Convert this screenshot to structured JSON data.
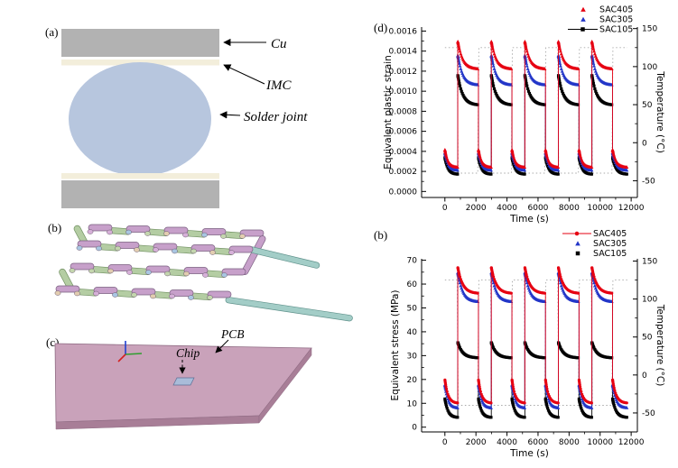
{
  "figure": {
    "background": "#ffffff"
  },
  "panels": {
    "a": {
      "label": "(a)",
      "annotations": {
        "cu": "Cu",
        "imc": "IMC",
        "solder_joint": "Solder joint"
      },
      "colors": {
        "cu_bar": "#b2b2b2",
        "imc_layer": "#f3eedb",
        "solder_ball": "#b7c6de"
      }
    },
    "b": {
      "label": "(b)",
      "colors": {
        "top_trace": "#c7a0ca",
        "bottom_trace": "#b4cda3",
        "lead_trace": "#a3cdc7",
        "ball_1": "#d6b0d8",
        "ball_2": "#a9c6e2",
        "ball_3": "#c4d6ae",
        "ball_4": "#e2cdb0"
      }
    },
    "c": {
      "label": "(c)",
      "annotations": {
        "pcb": "PCB",
        "chip": "Chip"
      },
      "colors": {
        "board_top": "#c9a2ba",
        "board_side": "#a87e97",
        "chip": "#a9bcd9",
        "axis_x": "#d42020",
        "axis_y": "#2f9e2f",
        "axis_z": "#2040d0"
      }
    }
  },
  "chart_data": [
    {
      "id": "strain",
      "panel_label": "(d)",
      "type": "scatter",
      "xlabel": "Time (s)",
      "ylabel": "Equivalent plastic strain",
      "y2label": "Temperature (°C)",
      "xticks": [
        0,
        2000,
        4000,
        6000,
        8000,
        10000,
        12000
      ],
      "xminor": 1000,
      "yticks": [
        0.0,
        0.0002,
        0.0004,
        0.0006,
        0.0008,
        0.001,
        0.0012,
        0.0014,
        0.0016
      ],
      "ytick_labels": [
        "0.0000",
        "0.0002",
        "0.0004",
        "0.0006",
        "0.0008",
        "0.0010",
        "0.0012",
        "0.0014",
        "0.0016"
      ],
      "y2ticks": [
        -50,
        0,
        50,
        100,
        150
      ],
      "xlim": [
        -1500,
        12400
      ],
      "ylim": [
        -6e-05,
        0.00164
      ],
      "y2lim": [
        -72,
        152
      ],
      "legend": [
        {
          "name": "SAC405",
          "color": "#e60012",
          "marker": "triangle",
          "line": false
        },
        {
          "name": "SAC305",
          "color": "#2336c8",
          "marker": "triangle",
          "line": false
        },
        {
          "name": "SAC105",
          "color": "#000000",
          "marker": "square",
          "line": true
        }
      ],
      "cycles": {
        "n": 5,
        "period": 2160,
        "hot_phase_len": 830,
        "t_end": 11750
      },
      "series": [
        {
          "name": "SAC405",
          "color": "#e60012",
          "marker": "triangle",
          "hot_peak": 0.00042,
          "hot_end": 0.00024,
          "cold_peak": 0.0015,
          "cold_end": 0.00122
        },
        {
          "name": "SAC305",
          "color": "#2336c8",
          "marker": "triangle",
          "hot_peak": 0.00039,
          "hot_end": 0.00021,
          "cold_peak": 0.00136,
          "cold_end": 0.00106
        },
        {
          "name": "SAC105",
          "color": "#000000",
          "marker": "square",
          "hot_peak": 0.00034,
          "hot_end": 0.00017,
          "cold_peak": 0.00116,
          "cold_end": 0.00086
        }
      ],
      "temperature_profile": {
        "hot": 125,
        "cold": -40,
        "color": "#a8a8a8"
      }
    },
    {
      "id": "stress",
      "panel_label": "(b)",
      "type": "scatter",
      "xlabel": "Time (s)",
      "ylabel": "Equivalent stress (MPa)",
      "y2label": "Temperature (°C)",
      "xticks": [
        0,
        2000,
        4000,
        6000,
        8000,
        10000,
        12000
      ],
      "xminor": 1000,
      "yticks": [
        0,
        10,
        20,
        30,
        40,
        50,
        60,
        70
      ],
      "ytick_labels": [
        "0",
        "10",
        "20",
        "30",
        "40",
        "50",
        "60",
        "70"
      ],
      "y2ticks": [
        -50,
        0,
        50,
        100,
        150
      ],
      "xlim": [
        -1500,
        12400
      ],
      "ylim": [
        -2,
        70.6
      ],
      "y2lim": [
        -75,
        153
      ],
      "legend": [
        {
          "name": "SAC405",
          "color": "#e60012",
          "marker": "circle",
          "line": true
        },
        {
          "name": "SAC305",
          "color": "#2336c8",
          "marker": "triangle",
          "line": false
        },
        {
          "name": "SAC105",
          "color": "#000000",
          "marker": "square",
          "line": false
        }
      ],
      "cycles": {
        "n": 5,
        "period": 2160,
        "hot_phase_len": 830,
        "t_end": 11750
      },
      "series": [
        {
          "name": "SAC405",
          "color": "#e60012",
          "marker": "circle",
          "hot_peak": 20,
          "hot_end": 10,
          "cold_peak": 67,
          "cold_end": 56
        },
        {
          "name": "SAC305",
          "color": "#2336c8",
          "marker": "triangle",
          "hot_peak": 18,
          "hot_end": 8,
          "cold_peak": 65,
          "cold_end": 52.5
        },
        {
          "name": "SAC105",
          "color": "#000000",
          "marker": "square",
          "hot_peak": 12,
          "hot_end": 4,
          "cold_peak": 35.5,
          "cold_end": 29
        }
      ],
      "temperature_profile": {
        "hot": 125,
        "cold": -40,
        "color": "#a8a8a8"
      }
    }
  ]
}
